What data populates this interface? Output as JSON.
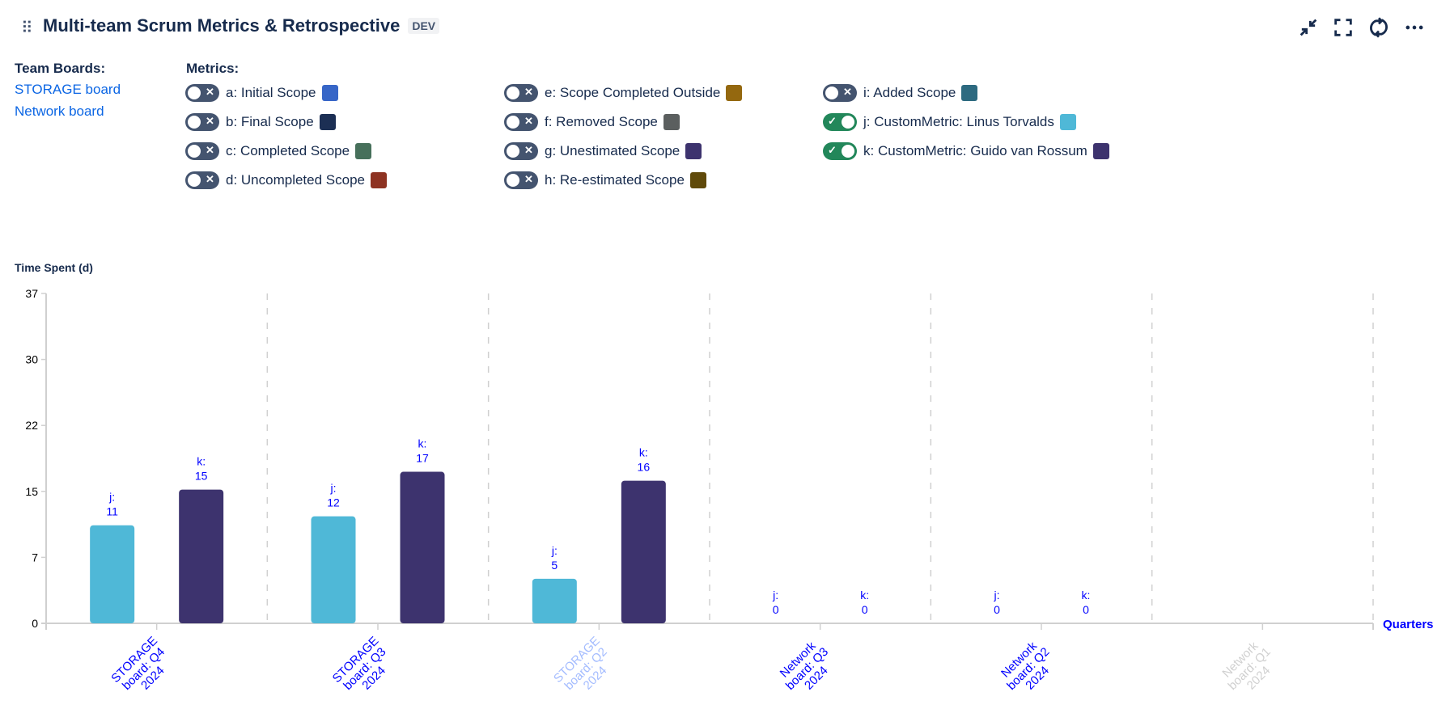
{
  "header": {
    "title": "Multi-team Scrum Metrics & Retrospective",
    "badge": "DEV",
    "actions": [
      {
        "name": "collapse-icon"
      },
      {
        "name": "fullscreen-icon"
      },
      {
        "name": "refresh-icon"
      },
      {
        "name": "more-icon"
      }
    ]
  },
  "boards": {
    "label": "Team Boards:",
    "items": [
      "STORAGE board",
      "Network board"
    ]
  },
  "metrics": {
    "label": "Metrics:",
    "items": [
      {
        "label": "a: Initial Scope",
        "color": "#3766c7",
        "on": false
      },
      {
        "label": "b: Final Scope",
        "color": "#1c2f54",
        "on": false
      },
      {
        "label": "c: Completed Scope",
        "color": "#47705b",
        "on": false
      },
      {
        "label": "d: Uncompleted Scope",
        "color": "#8e3322",
        "on": false
      },
      {
        "label": "e: Scope Completed Outside",
        "color": "#94680f",
        "on": false
      },
      {
        "label": "f: Removed Scope",
        "color": "#5b5f5f",
        "on": false
      },
      {
        "label": "g: Unestimated Scope",
        "color": "#3d336e",
        "on": false
      },
      {
        "label": "h: Re-estimated Scope",
        "color": "#604a0a",
        "on": false
      },
      {
        "label": "i: Added Scope",
        "color": "#2d6a80",
        "on": false
      },
      {
        "label": "j: CustomMetric: Linus Torvalds",
        "color": "#4fb8d7",
        "on": true
      },
      {
        "label": "k: CustomMetric: Guido van Rossum",
        "color": "#3d336e",
        "on": true
      }
    ]
  },
  "chart_data": {
    "type": "bar",
    "ylabel": "Time Spent (d)",
    "xlabel": "Quarters",
    "ylim": [
      0,
      37
    ],
    "yticks": [
      "0",
      "7",
      "15",
      "22",
      "30",
      "37"
    ],
    "grid": "vertical dashed separators",
    "categories": [
      {
        "lines": [
          "STORAGE",
          "board: Q4",
          "2024"
        ],
        "color": "#0000ff"
      },
      {
        "lines": [
          "STORAGE",
          "board: Q3",
          "2024"
        ],
        "color": "#0000ff"
      },
      {
        "lines": [
          "STORAGE",
          "board: Q2",
          "2024"
        ],
        "color": "#a4bcff"
      },
      {
        "lines": [
          "Network",
          "board: Q3",
          "2024"
        ],
        "color": "#0000ff"
      },
      {
        "lines": [
          "Network",
          "board: Q2",
          "2024"
        ],
        "color": "#0000ff"
      },
      {
        "lines": [
          "Network",
          "board: Q1",
          "2024"
        ],
        "color": "#d0d0d0"
      }
    ],
    "series": [
      {
        "name": "j:",
        "color": "#4fb8d7",
        "values": [
          11,
          12,
          5,
          0,
          0,
          null
        ]
      },
      {
        "name": "k:",
        "color": "#3d336e",
        "values": [
          15,
          17,
          16,
          0,
          0,
          null
        ]
      }
    ],
    "label_color": "#0000ff"
  }
}
